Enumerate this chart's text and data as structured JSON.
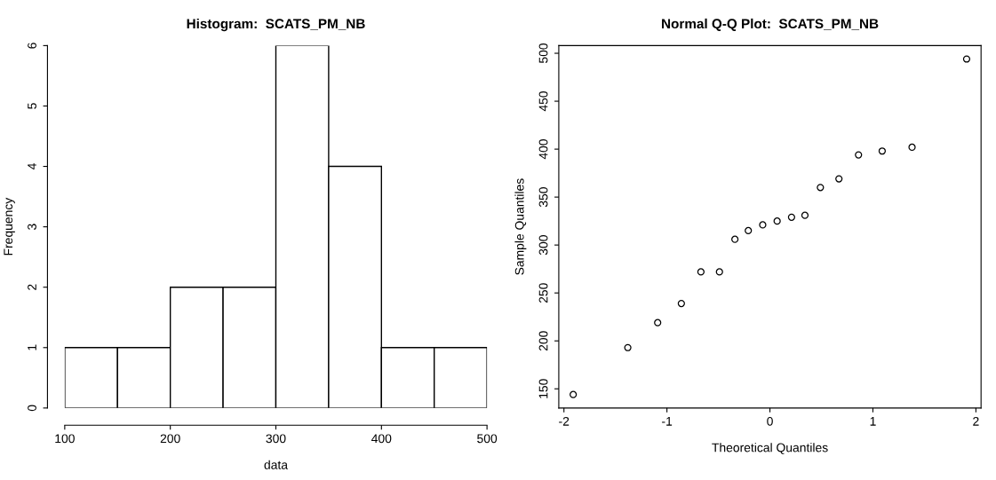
{
  "chart_data": [
    {
      "type": "histogram",
      "title": "Histogram:  SCATS_PM_NB",
      "xlabel": "data",
      "ylabel": "Frequency",
      "bins": [
        100,
        150,
        200,
        250,
        300,
        350,
        400,
        450,
        500
      ],
      "values": [
        1,
        1,
        2,
        2,
        6,
        4,
        1,
        1
      ],
      "color": "#ffffff",
      "xlim": [
        100,
        500
      ],
      "ylim": [
        0,
        6
      ],
      "xticks": [
        100,
        200,
        300,
        400,
        500
      ],
      "yticks": [
        0,
        1,
        2,
        3,
        4,
        5,
        6
      ]
    },
    {
      "type": "scatter",
      "title": "Normal Q-Q Plot:  SCATS_PM_NB",
      "xlabel": "Theoretical Quantiles",
      "ylabel": "Sample Quantiles",
      "x": [
        -1.91,
        -1.38,
        -1.09,
        -0.86,
        -0.67,
        -0.49,
        -0.34,
        -0.21,
        -0.07,
        0.07,
        0.21,
        0.34,
        0.49,
        0.67,
        0.86,
        1.09,
        1.38,
        1.91
      ],
      "values": [
        144,
        193,
        219,
        239,
        272,
        272,
        306,
        315,
        321,
        325,
        329,
        331,
        360,
        369,
        394,
        398,
        402,
        494
      ],
      "color": "#000000",
      "marker": "circle",
      "xlim": [
        -2.05,
        2.05
      ],
      "ylim": [
        130,
        508
      ],
      "xticks": [
        -2,
        -1,
        0,
        1,
        2
      ],
      "yticks": [
        150,
        200,
        250,
        300,
        350,
        400,
        450,
        500
      ]
    }
  ]
}
